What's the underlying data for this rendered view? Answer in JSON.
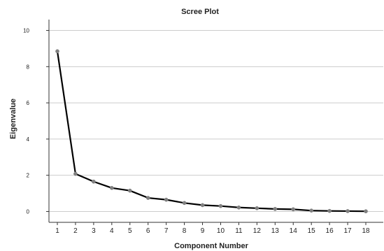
{
  "chart_data": {
    "type": "line",
    "title": "Scree Plot",
    "xlabel": "Component Number",
    "ylabel": "Eigenvalue",
    "x": [
      1,
      2,
      3,
      4,
      5,
      6,
      7,
      8,
      9,
      10,
      11,
      12,
      13,
      14,
      15,
      16,
      17,
      18
    ],
    "x_tick_labels": [
      "1",
      "2",
      "3",
      "4",
      "5",
      "6",
      "7",
      "8",
      "9",
      "10",
      "11",
      "12",
      "13",
      "14",
      "15",
      "16",
      "17",
      "18"
    ],
    "y": [
      8.85,
      2.08,
      1.65,
      1.3,
      1.15,
      0.75,
      0.65,
      0.47,
      0.35,
      0.3,
      0.22,
      0.18,
      0.14,
      0.12,
      0.05,
      0.03,
      0.02,
      0.01
    ],
    "ylim": [
      -0.6,
      10.6
    ],
    "yticks": [
      0,
      2,
      4,
      6,
      8,
      10
    ],
    "ytick_labels": [
      "0",
      "2",
      "4",
      "6",
      "8",
      "10"
    ],
    "grid": true,
    "colors": {
      "line": "#000000",
      "marker": "#808080",
      "grid": "#cccccc",
      "axis": "#333333"
    }
  }
}
